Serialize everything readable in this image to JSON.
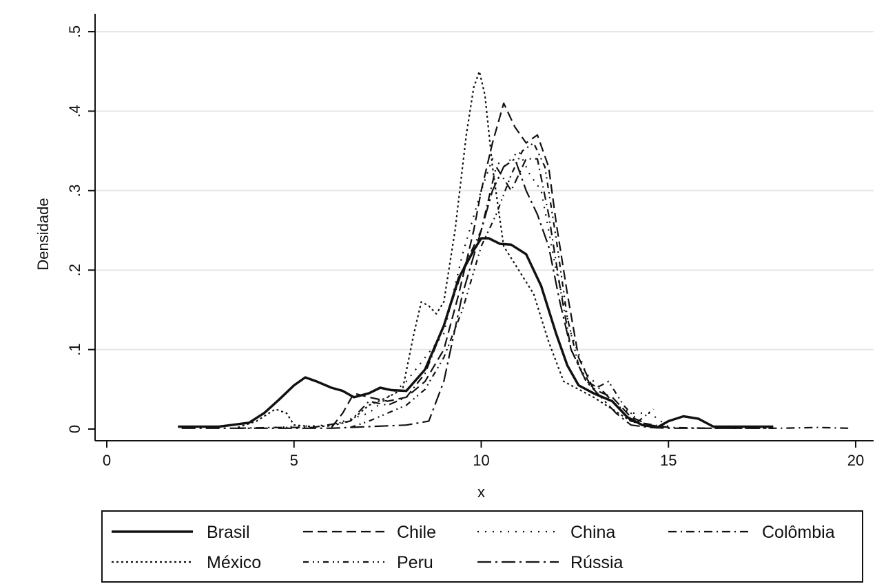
{
  "chart_data": {
    "type": "line",
    "title": "",
    "xlabel": "x",
    "ylabel": "Densidade",
    "xlim": [
      0,
      20
    ],
    "ylim": [
      0,
      0.5
    ],
    "x_ticks": [
      0,
      5,
      10,
      15,
      20
    ],
    "x_tick_labels": [
      "0",
      "5",
      "10",
      "15",
      "20"
    ],
    "y_ticks": [
      0,
      0.1,
      0.2,
      0.3,
      0.4,
      0.5
    ],
    "y_tick_labels": [
      "0",
      ".1",
      ".2",
      ".3",
      ".4",
      ".5"
    ],
    "grid": true,
    "legend_placement": "bottom",
    "colors": {
      "background": "#ffffff",
      "plot_area": "#ffffff",
      "line": "#111111",
      "grid": "#e6e6e6",
      "axis": "#111111"
    },
    "series": [
      {
        "name": "Brasil",
        "dash": "solid",
        "x": [
          1.9,
          3.0,
          3.8,
          4.2,
          4.6,
          5.0,
          5.3,
          5.6,
          6.0,
          6.3,
          6.6,
          7.0,
          7.3,
          7.6,
          8.0,
          8.5,
          9.0,
          9.4,
          9.8,
          10.0,
          10.2,
          10.5,
          10.8,
          11.2,
          11.6,
          12.0,
          12.3,
          12.6,
          13.0,
          13.5,
          13.9,
          14.3,
          14.7,
          15.0,
          15.4,
          15.8,
          16.2,
          16.8,
          17.8
        ],
        "y": [
          0.003,
          0.003,
          0.008,
          0.02,
          0.037,
          0.055,
          0.065,
          0.06,
          0.052,
          0.048,
          0.04,
          0.045,
          0.052,
          0.049,
          0.048,
          0.075,
          0.13,
          0.19,
          0.225,
          0.24,
          0.24,
          0.233,
          0.232,
          0.22,
          0.18,
          0.12,
          0.08,
          0.055,
          0.045,
          0.035,
          0.015,
          0.005,
          0.002,
          0.01,
          0.016,
          0.013,
          0.003,
          0.003,
          0.003
        ]
      },
      {
        "name": "Chile",
        "dash": "dash",
        "x": [
          6.0,
          6.3,
          6.6,
          7.0,
          7.5,
          8.0,
          8.5,
          9.0,
          9.4,
          9.8,
          10.0,
          10.3,
          10.6,
          10.9,
          11.2,
          11.5,
          11.8,
          12.0,
          12.3,
          12.6,
          13.0,
          13.5,
          14.0,
          14.5,
          15.0
        ],
        "y": [
          0.002,
          0.02,
          0.045,
          0.04,
          0.035,
          0.04,
          0.06,
          0.1,
          0.17,
          0.25,
          0.3,
          0.36,
          0.41,
          0.38,
          0.36,
          0.37,
          0.33,
          0.26,
          0.17,
          0.09,
          0.05,
          0.04,
          0.015,
          0.005,
          0.002
        ]
      },
      {
        "name": "China",
        "dash": "sparse-dot",
        "x": [
          4.5,
          5.0,
          6.0,
          7.0,
          7.5,
          8.0,
          8.5,
          9.0,
          9.5,
          10.0,
          10.3,
          10.6,
          11.0,
          11.3,
          11.6,
          12.0,
          12.4,
          12.8,
          13.2,
          13.6,
          14.0,
          14.5,
          15.0
        ],
        "y": [
          0.002,
          0.003,
          0.005,
          0.02,
          0.04,
          0.06,
          0.09,
          0.12,
          0.22,
          0.3,
          0.34,
          0.33,
          0.35,
          0.32,
          0.3,
          0.2,
          0.12,
          0.07,
          0.05,
          0.03,
          0.02,
          0.02,
          0.003
        ]
      },
      {
        "name": "Colômbia",
        "dash": "dash-dot",
        "x": [
          3.5,
          4.5,
          5.5,
          6.5,
          7.0,
          7.5,
          8.0,
          8.5,
          9.0,
          9.5,
          10.0,
          10.4,
          10.8,
          11.2,
          11.5,
          11.8,
          12.1,
          12.4,
          12.8,
          13.2,
          13.6,
          14.0,
          15.0,
          16.0,
          17.0,
          18.0,
          19.0,
          19.8
        ],
        "y": [
          0.001,
          0.002,
          0.002,
          0.01,
          0.035,
          0.03,
          0.04,
          0.07,
          0.13,
          0.2,
          0.25,
          0.33,
          0.3,
          0.34,
          0.34,
          0.27,
          0.18,
          0.1,
          0.06,
          0.05,
          0.03,
          0.01,
          0.002,
          0.001,
          0.001,
          0.001,
          0.002,
          0.001
        ]
      },
      {
        "name": "México",
        "dash": "dot",
        "x": [
          3.5,
          4.0,
          4.5,
          4.8,
          5.0,
          5.5,
          6.0,
          6.5,
          7.0,
          7.5,
          7.9,
          8.2,
          8.4,
          8.6,
          8.8,
          9.0,
          9.3,
          9.6,
          9.8,
          9.95,
          10.1,
          10.3,
          10.6,
          11.0,
          11.4,
          11.8,
          12.2,
          12.6,
          13.0,
          13.5,
          14.0,
          14.5
        ],
        "y": [
          0.002,
          0.01,
          0.025,
          0.02,
          0.005,
          0.003,
          0.004,
          0.01,
          0.03,
          0.04,
          0.05,
          0.12,
          0.16,
          0.155,
          0.145,
          0.16,
          0.25,
          0.37,
          0.43,
          0.45,
          0.42,
          0.33,
          0.23,
          0.2,
          0.17,
          0.11,
          0.06,
          0.05,
          0.04,
          0.025,
          0.01,
          0.003
        ]
      },
      {
        "name": "Peru",
        "dash": "dash-dot-dot",
        "x": [
          6.5,
          7.0,
          7.5,
          8.0,
          8.5,
          9.0,
          9.5,
          10.0,
          10.4,
          10.8,
          11.1,
          11.4,
          11.7,
          12.0,
          12.3,
          12.6,
          13.0,
          13.4,
          13.8,
          14.2,
          14.6
        ],
        "y": [
          0.002,
          0.01,
          0.02,
          0.03,
          0.05,
          0.09,
          0.15,
          0.23,
          0.27,
          0.32,
          0.35,
          0.36,
          0.33,
          0.24,
          0.14,
          0.08,
          0.05,
          0.06,
          0.03,
          0.01,
          0.025
        ]
      },
      {
        "name": "Rússia",
        "dash": "long-dash-dot",
        "x": [
          2.0,
          3.0,
          4.0,
          5.0,
          6.0,
          7.0,
          8.0,
          8.6,
          9.0,
          9.5,
          10.0,
          10.3,
          10.6,
          10.9,
          11.2,
          11.5,
          11.8,
          12.1,
          12.4,
          12.8,
          13.2,
          13.6,
          14.0,
          14.5,
          15.0,
          16.0,
          17.0,
          17.8
        ],
        "y": [
          0.001,
          0.001,
          0.001,
          0.001,
          0.001,
          0.003,
          0.005,
          0.01,
          0.06,
          0.17,
          0.25,
          0.3,
          0.33,
          0.34,
          0.3,
          0.27,
          0.23,
          0.16,
          0.1,
          0.06,
          0.04,
          0.02,
          0.005,
          0.002,
          0.001,
          0.001,
          0.001,
          0.001
        ]
      }
    ]
  }
}
